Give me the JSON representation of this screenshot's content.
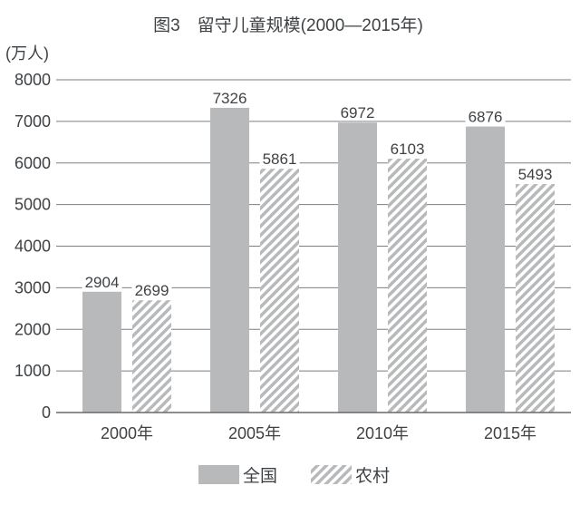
{
  "chart_data": {
    "type": "bar",
    "title": "图3　留守儿童规模(2000—2015年)",
    "unit_label": "(万人)",
    "categories": [
      "2000年",
      "2005年",
      "2010年",
      "2015年"
    ],
    "series": [
      {
        "name": "全国",
        "pattern": "solid",
        "values": [
          2904,
          7326,
          6972,
          6876
        ]
      },
      {
        "name": "农村",
        "pattern": "hatch",
        "values": [
          2699,
          5861,
          6103,
          5493
        ]
      }
    ],
    "ylim": [
      0,
      8000
    ],
    "yticks": [
      0,
      1000,
      2000,
      3000,
      4000,
      5000,
      6000,
      7000,
      8000
    ],
    "grid": true,
    "bar_value_labels": true,
    "legend_position": "bottom",
    "colors": {
      "bar_fill": "#b7b9bb",
      "hatch_stripe": "#b7b9bb",
      "hatch_background": "#ffffff",
      "gridline": "#7c7e81",
      "axis_line": "#67696c",
      "text": "#3f4245",
      "background": "#ffffff"
    }
  }
}
